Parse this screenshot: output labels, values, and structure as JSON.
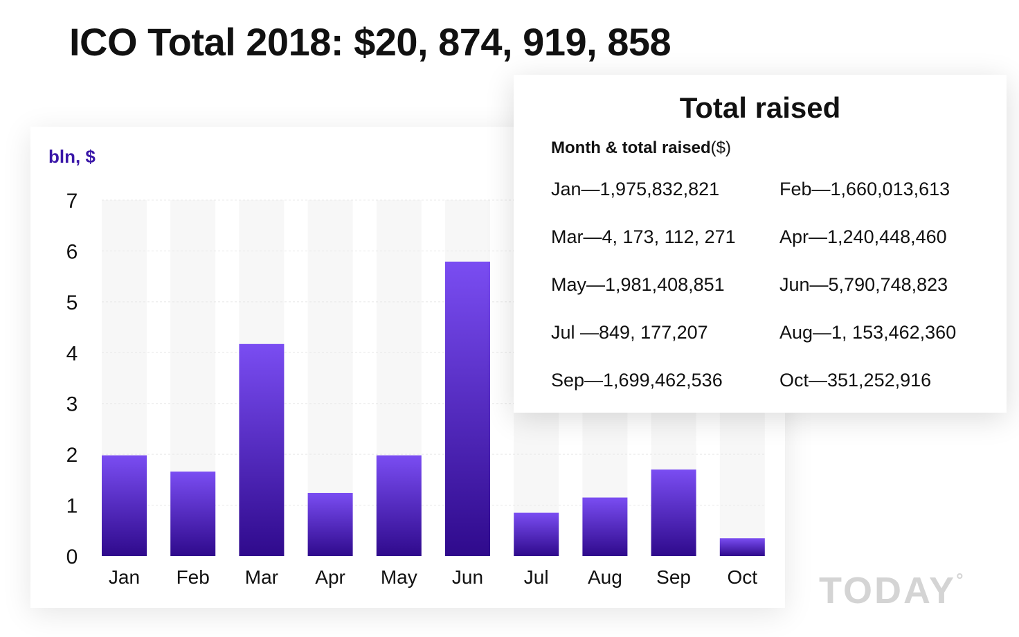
{
  "headline": "ICO Total 2018: $20, 874, 919, 858",
  "chart_data": {
    "type": "bar",
    "title": "",
    "xlabel": "",
    "ylabel": "bln, $",
    "categories": [
      "Jan",
      "Feb",
      "Mar",
      "Apr",
      "May",
      "Jun",
      "Jul",
      "Aug",
      "Sep",
      "Oct"
    ],
    "values": [
      1.98,
      1.66,
      4.17,
      1.24,
      1.98,
      5.79,
      0.85,
      1.15,
      1.7,
      0.35
    ],
    "ylim": [
      0,
      7
    ],
    "yticks": [
      0,
      1,
      2,
      3,
      4,
      5,
      6,
      7
    ],
    "grid": true,
    "colors": {
      "bar_top": "#7a4df2",
      "bar_bottom": "#2f0a8c",
      "track": "#f7f7f7",
      "grid": "#e8e8e8",
      "unit_label": "#3a17a8"
    }
  },
  "table": {
    "title": "Total raised",
    "subtitle_bold": "Month & total raised",
    "subtitle_light": "($)",
    "entries": [
      "Jan—1,975,832,821",
      "Feb—1,660,013,613",
      "Mar—4, 173, 112, 271",
      "Apr—1,240,448,460",
      "May—1,981,408,851",
      "Jun—5,790,748,823",
      "Jul —849, 177,207",
      "Aug—1, 153,462,360",
      "Sep—1,699,462,536",
      "Oct—351,252,916"
    ]
  },
  "watermark": {
    "text": "TODAY",
    "mark": "°"
  }
}
